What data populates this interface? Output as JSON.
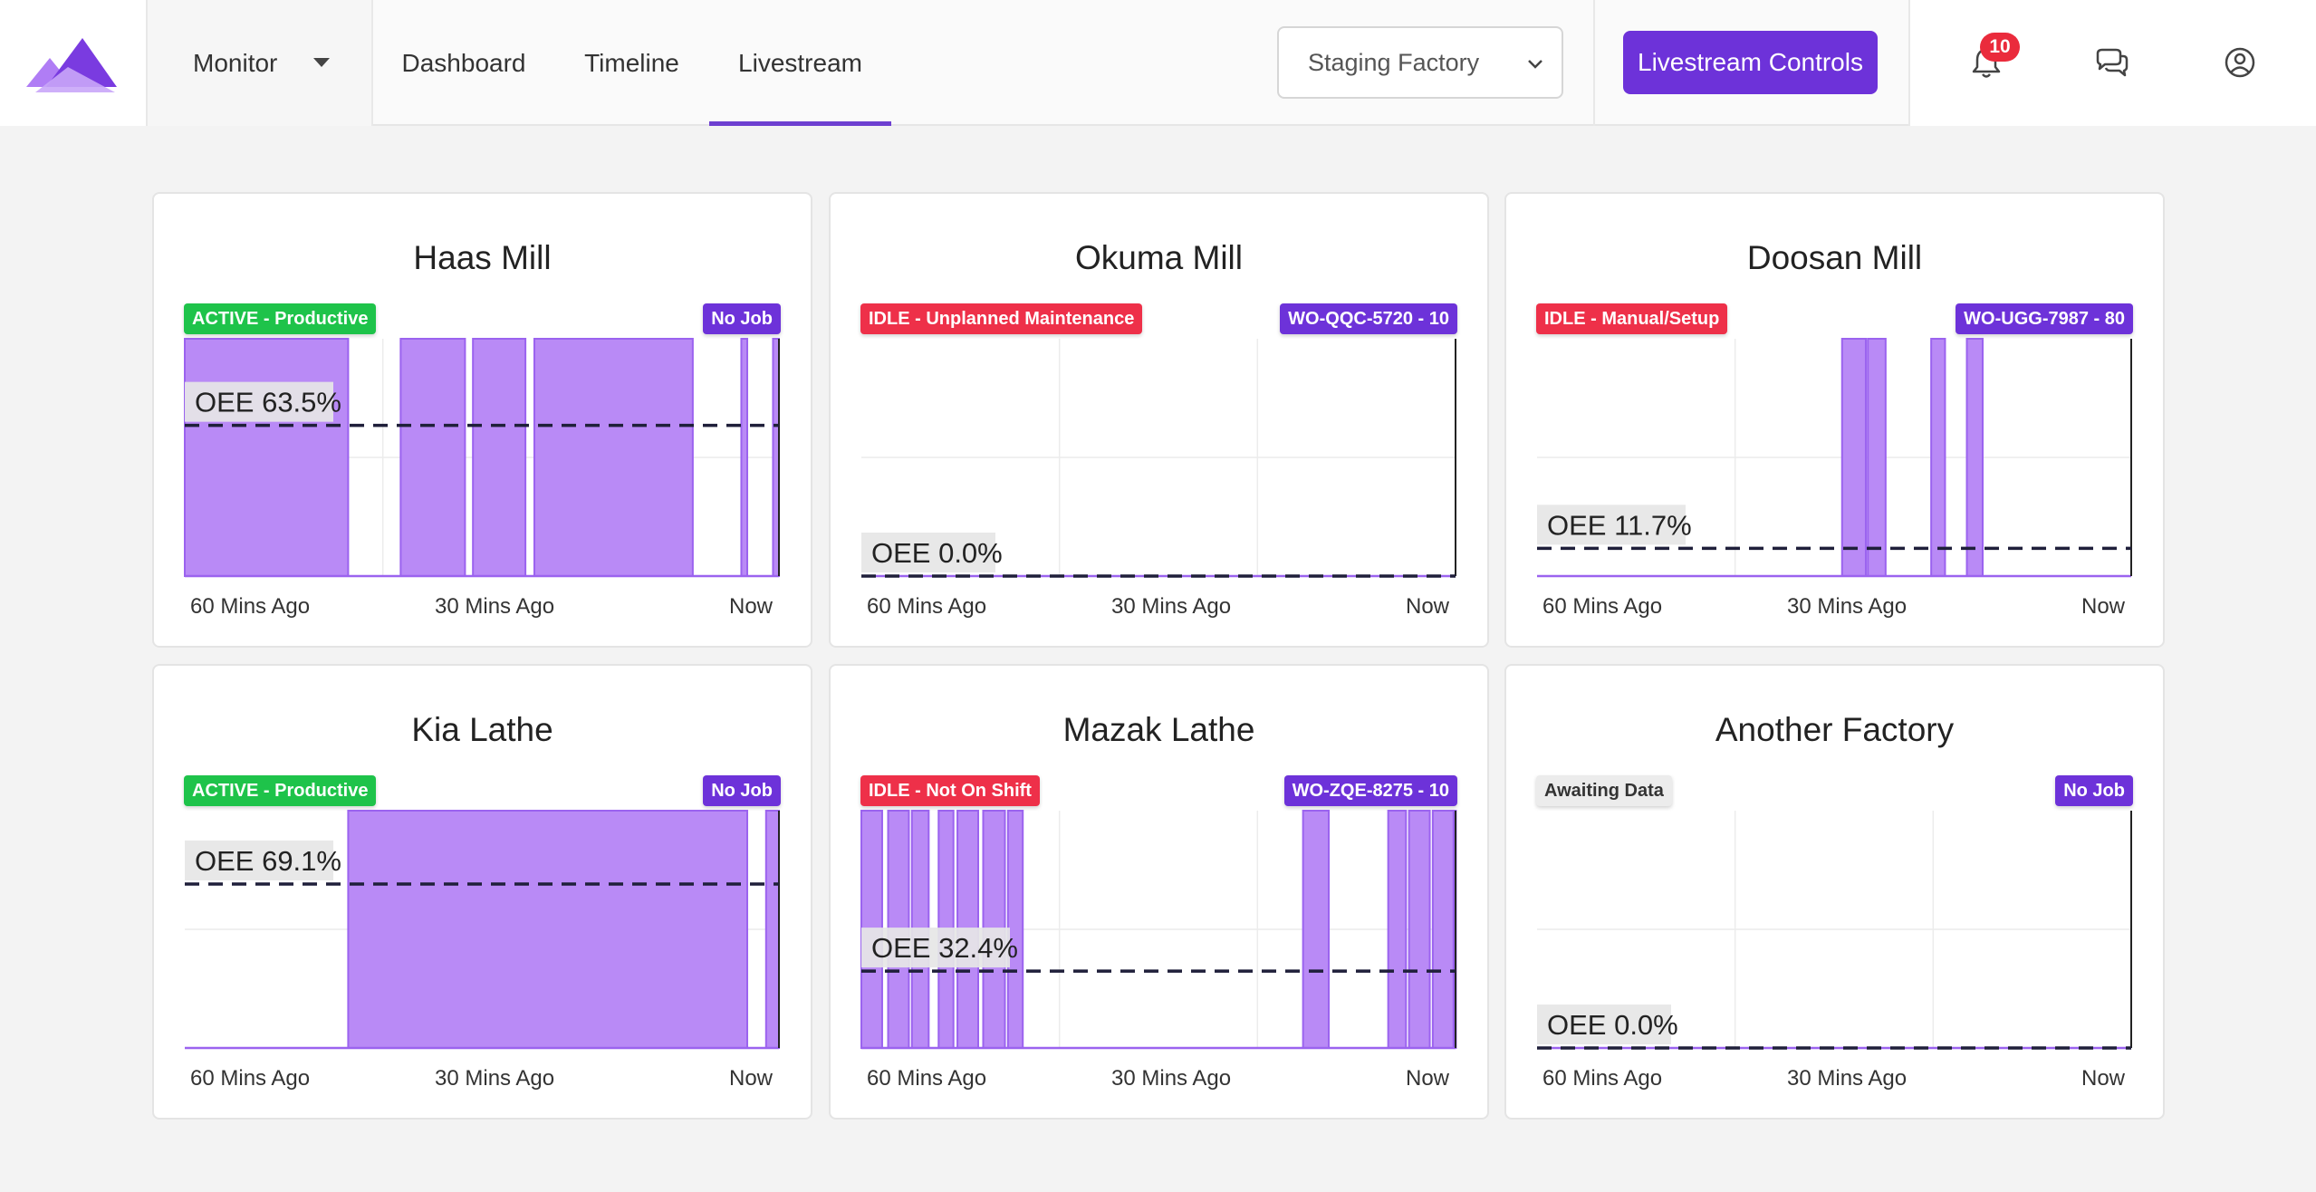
{
  "header": {
    "monitor_label": "Monitor",
    "nav_tabs": [
      "Dashboard",
      "Timeline",
      "Livestream"
    ],
    "active_tab": "Livestream",
    "factory_select_value": "Staging Factory",
    "livestream_controls_label": "Livestream Controls",
    "notification_count": "10",
    "icons": [
      "logo-mark",
      "bell-icon",
      "chat-icon",
      "user-icon"
    ]
  },
  "colors": {
    "accent": "#6d32d9",
    "bar_fill": "#b98af6",
    "bar_stroke": "#9b63ef",
    "active": "#1ec34a",
    "idle": "#ee3049"
  },
  "x_labels": [
    "60 Mins Ago",
    "30 Mins Ago",
    "Now"
  ],
  "machines": [
    {
      "name": "Haas Mill",
      "status": "ACTIVE - Productive",
      "status_kind": "active",
      "job": "No Job",
      "oee_label": "OEE 63.5%",
      "oee": 63.5,
      "active_intervals": [
        [
          -60,
          -43.5
        ],
        [
          -38.2,
          -31.7
        ],
        [
          -30.9,
          -25.6
        ],
        [
          -24.7,
          -8.7
        ],
        [
          -3.8,
          -3.2
        ],
        [
          -0.6,
          0
        ]
      ]
    },
    {
      "name": "Okuma Mill",
      "status": "IDLE - Unplanned Maintenance",
      "status_kind": "idle",
      "job": "WO-QQC-5720 - 10",
      "oee_label": "OEE 0.0%",
      "oee": 0.0,
      "active_intervals": []
    },
    {
      "name": "Doosan Mill",
      "status": "IDLE - Manual/Setup",
      "status_kind": "idle",
      "job": "WO-UGG-7987 - 80",
      "oee_label": "OEE 11.7%",
      "oee": 11.7,
      "active_intervals": [
        [
          -29.2,
          -26.8
        ],
        [
          -26.6,
          -24.8
        ],
        [
          -20.2,
          -18.8
        ],
        [
          -16.6,
          -15.0
        ]
      ]
    },
    {
      "name": "Kia Lathe",
      "status": "ACTIVE - Productive",
      "status_kind": "active",
      "job": "No Job",
      "oee_label": "OEE 69.1%",
      "oee": 69.1,
      "active_intervals": [
        [
          -43.5,
          -3.2
        ],
        [
          -1.3,
          0
        ]
      ]
    },
    {
      "name": "Mazak Lathe",
      "status": "IDLE - Not On Shift",
      "status_kind": "idle",
      "job": "WO-ZQE-8275 - 10",
      "oee_label": "OEE 32.4%",
      "oee": 32.4,
      "active_intervals": [
        [
          -60,
          -57.9
        ],
        [
          -57.3,
          -55.2
        ],
        [
          -54.9,
          -53.2
        ],
        [
          -52.2,
          -50.7
        ],
        [
          -50.3,
          -48.2
        ],
        [
          -47.7,
          -45.5
        ],
        [
          -45.2,
          -43.7
        ],
        [
          -15.4,
          -12.8
        ],
        [
          -6.8,
          -5.0
        ],
        [
          -4.7,
          -2.6
        ],
        [
          -2.3,
          -0.2
        ],
        [
          -0.1,
          0
        ]
      ]
    },
    {
      "name": "Another Factory",
      "status": "Awaiting Data",
      "status_kind": "await",
      "job": "No Job",
      "oee_label": "OEE 0.0%",
      "oee": 0.0,
      "active_intervals": []
    }
  ]
}
